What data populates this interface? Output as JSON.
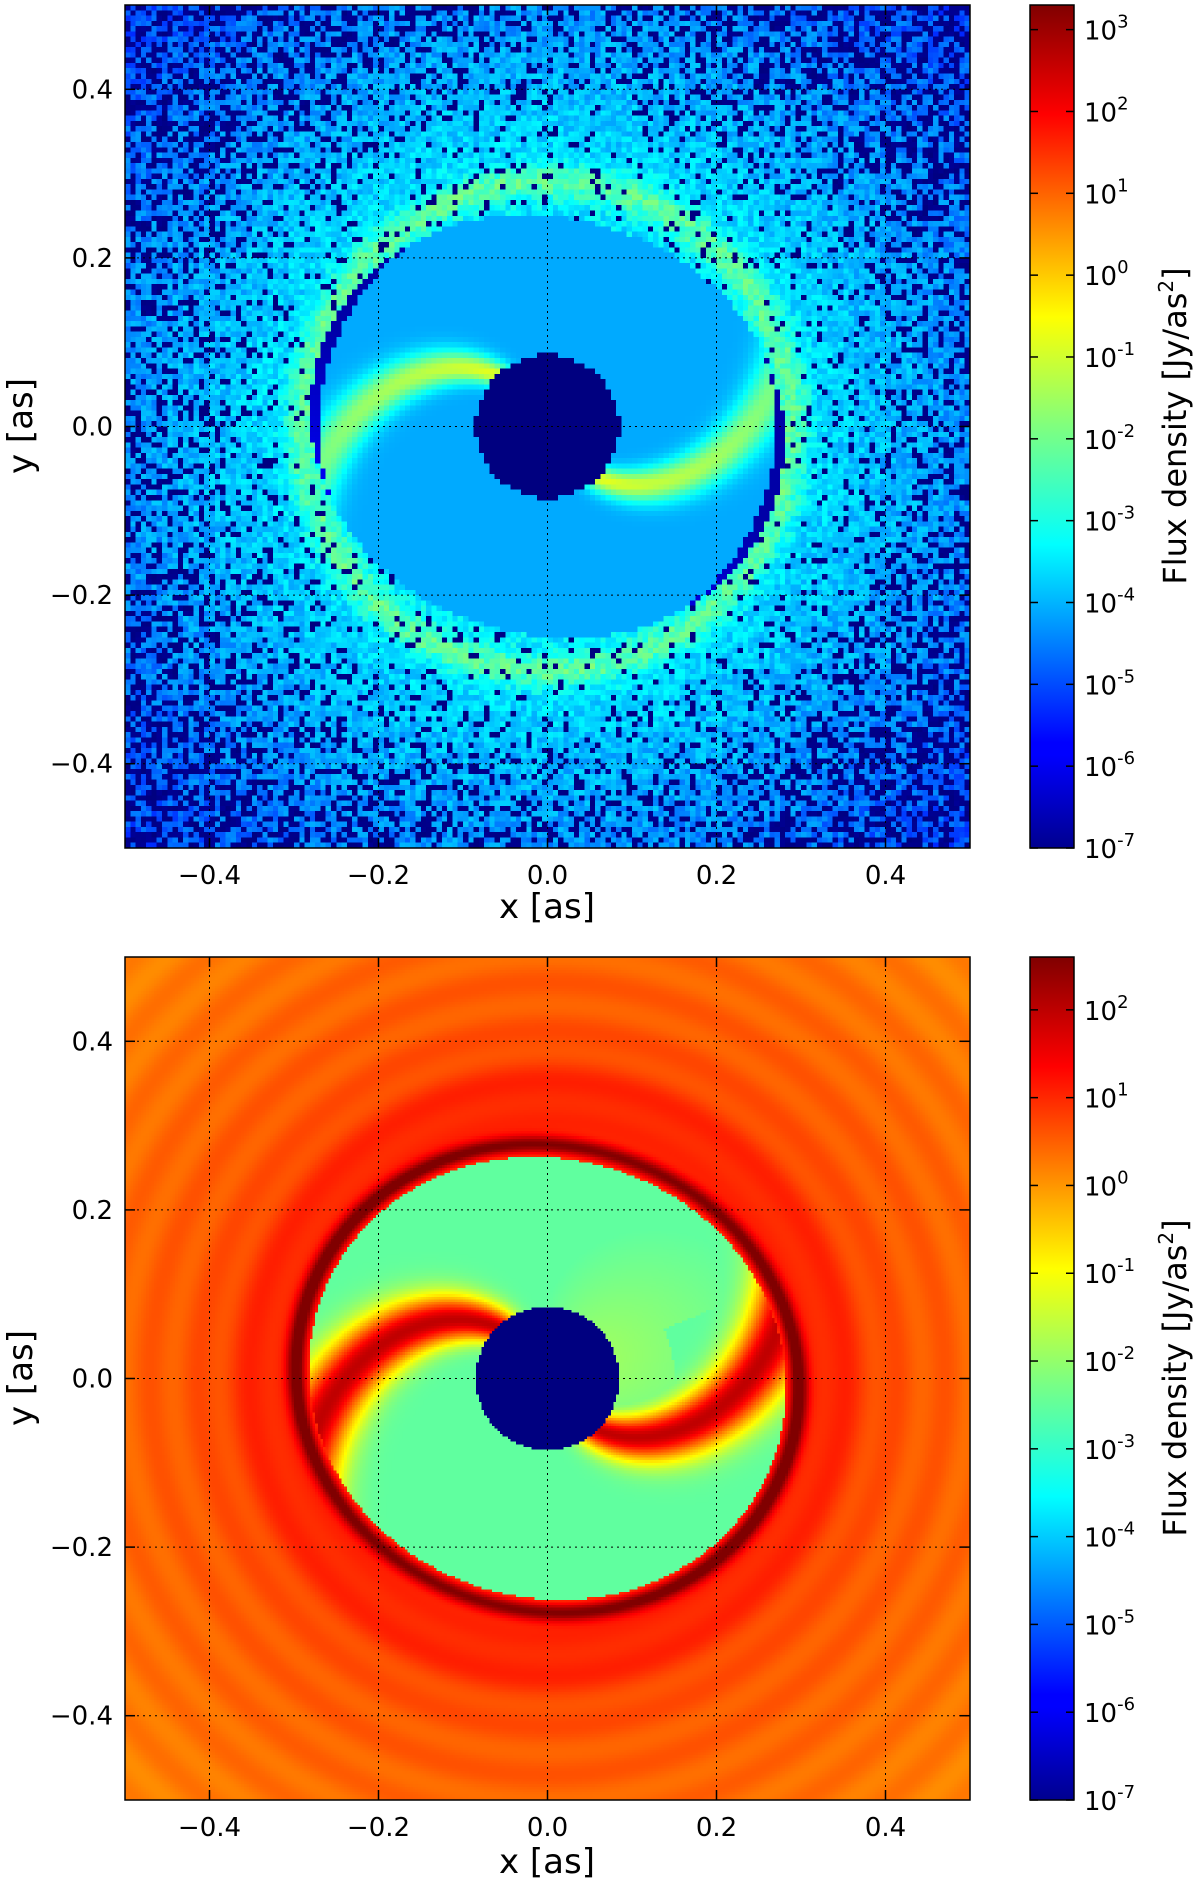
{
  "chart_data": [
    {
      "type": "heatmap",
      "colormap": "jet",
      "xlabel": "x [as]",
      "ylabel": "y [as]",
      "xlim": [
        -0.5,
        0.5
      ],
      "ylim": [
        -0.5,
        0.5
      ],
      "xticks": [
        -0.4,
        -0.2,
        0.0,
        0.2,
        0.4
      ],
      "yticks": [
        -0.4,
        -0.2,
        0.0,
        0.2,
        0.4
      ],
      "xtick_labels": [
        "−0.4",
        "−0.2",
        "0.0",
        "0.2",
        "0.4"
      ],
      "ytick_labels": [
        "−0.4",
        "−0.2",
        "0.0",
        "0.2",
        "0.4"
      ],
      "grid": true,
      "colorbar": {
        "label_main": "Flux density [Jy/as",
        "label_sup": "2",
        "label_end": "]",
        "scale": "log",
        "range": [
          1e-07,
          2000.0
        ],
        "tick_exponents": [
          -7,
          -6,
          -5,
          -4,
          -3,
          -2,
          -1,
          0,
          1,
          2,
          3
        ],
        "tick_base": "10"
      },
      "background_noise": true
    },
    {
      "type": "heatmap",
      "colormap": "jet",
      "xlabel": "x [as]",
      "ylabel": "y [as]",
      "xlim": [
        -0.5,
        0.5
      ],
      "ylim": [
        -0.5,
        0.5
      ],
      "xticks": [
        -0.4,
        -0.2,
        0.0,
        0.2,
        0.4
      ],
      "yticks": [
        -0.4,
        -0.2,
        0.0,
        0.2,
        0.4
      ],
      "xtick_labels": [
        "−0.4",
        "−0.2",
        "0.0",
        "0.2",
        "0.4"
      ],
      "ytick_labels": [
        "−0.4",
        "−0.2",
        "0.0",
        "0.2",
        "0.4"
      ],
      "grid": true,
      "colorbar": {
        "label_main": "Flux density [Jy/as",
        "label_sup": "2",
        "label_end": "]",
        "scale": "log",
        "range": [
          1e-07,
          400.0
        ],
        "tick_exponents": [
          -7,
          -6,
          -5,
          -4,
          -3,
          -2,
          -1,
          0,
          1,
          2
        ],
        "tick_base": "10"
      },
      "background_noise": false
    }
  ]
}
